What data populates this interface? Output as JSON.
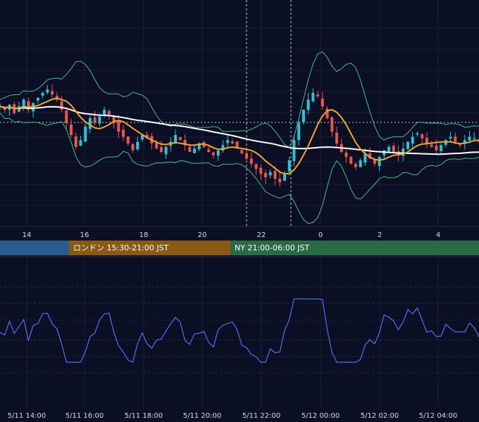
{
  "chart_data": [
    {
      "type": "candlestick",
      "title": "",
      "x_tick_labels": [
        "14",
        "16",
        "18",
        "20",
        "22",
        "0",
        "2",
        "4"
      ],
      "overlays": [
        "moving-average-long (white)",
        "moving-average-short (orange)",
        "bollinger-bands (green)"
      ],
      "colors": {
        "up": "#26c6da",
        "down": "#ef5350",
        "ma_long": "#ffffff",
        "ma_short": "#f5a623",
        "bands": "#3fbf8f"
      },
      "y_values_note": "relative price path, no price scale visible",
      "path": [
        0.62,
        0.6,
        0.63,
        0.58,
        0.62,
        0.66,
        0.6,
        0.64,
        0.67,
        0.7,
        0.72,
        0.69,
        0.66,
        0.6,
        0.52,
        0.45,
        0.38,
        0.42,
        0.5,
        0.55,
        0.52,
        0.56,
        0.6,
        0.57,
        0.52,
        0.47,
        0.44,
        0.4,
        0.36,
        0.41,
        0.45,
        0.43,
        0.4,
        0.37,
        0.35,
        0.38,
        0.41,
        0.45,
        0.42,
        0.39,
        0.35,
        0.37,
        0.4,
        0.38,
        0.35,
        0.33,
        0.36,
        0.39,
        0.42,
        0.4,
        0.37,
        0.34,
        0.31,
        0.28,
        0.25,
        0.22,
        0.2,
        0.23,
        0.19,
        0.17,
        0.22,
        0.3,
        0.42,
        0.52,
        0.6,
        0.66,
        0.7,
        0.68,
        0.62,
        0.55,
        0.47,
        0.4,
        0.35,
        0.32,
        0.28,
        0.26,
        0.3,
        0.34,
        0.31,
        0.28,
        0.32,
        0.36,
        0.38,
        0.35,
        0.33,
        0.37,
        0.41,
        0.44,
        0.46,
        0.43,
        0.4,
        0.38,
        0.36,
        0.39,
        0.42,
        0.44,
        0.41,
        0.39,
        0.42,
        0.44,
        0.43,
        0.41
      ]
    },
    {
      "type": "line",
      "title": "",
      "x_tick_labels": [
        "5/11 14:00",
        "5/11 16:00",
        "5/11 18:00",
        "5/11 20:00",
        "5/11 22:00",
        "5/12 00:00",
        "5/12 02:00",
        "5/12 04:00"
      ],
      "color": "#5b6cf0"
    }
  ],
  "sessions": [
    {
      "label": "",
      "color": "#2b5a8c"
    },
    {
      "label": "ロンドン 15:30-21:00 JST",
      "color": "#8a5a14"
    },
    {
      "label": "NY 21:00-06:00 JST",
      "color": "#2a6b47"
    }
  ]
}
